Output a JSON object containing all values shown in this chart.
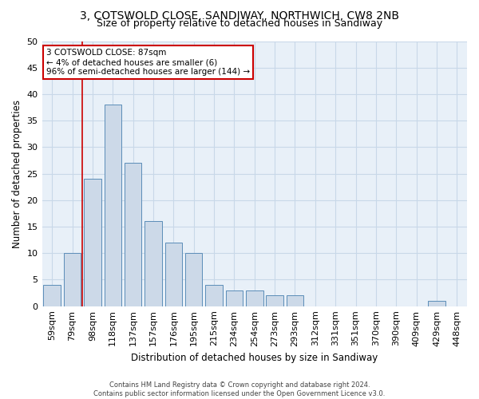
{
  "title1": "3, COTSWOLD CLOSE, SANDIWAY, NORTHWICH, CW8 2NB",
  "title2": "Size of property relative to detached houses in Sandiway",
  "xlabel": "Distribution of detached houses by size in Sandiway",
  "ylabel": "Number of detached properties",
  "categories": [
    "59sqm",
    "79sqm",
    "98sqm",
    "118sqm",
    "137sqm",
    "157sqm",
    "176sqm",
    "195sqm",
    "215sqm",
    "234sqm",
    "254sqm",
    "273sqm",
    "293sqm",
    "312sqm",
    "331sqm",
    "351sqm",
    "370sqm",
    "390sqm",
    "409sqm",
    "429sqm",
    "448sqm"
  ],
  "values": [
    4,
    10,
    24,
    38,
    27,
    16,
    12,
    10,
    4,
    3,
    3,
    2,
    2,
    0,
    0,
    0,
    0,
    0,
    0,
    1,
    0
  ],
  "bar_color": "#ccd9e8",
  "bar_edgecolor": "#5b8db8",
  "vline_color": "#cc0000",
  "annotation_text": "3 COTSWOLD CLOSE: 87sqm\n← 4% of detached houses are smaller (6)\n96% of semi-detached houses are larger (144) →",
  "annotation_box_edgecolor": "#cc0000",
  "ylim": [
    0,
    50
  ],
  "yticks": [
    0,
    5,
    10,
    15,
    20,
    25,
    30,
    35,
    40,
    45,
    50
  ],
  "grid_color": "#c8d8e8",
  "bg_color": "#e8f0f8",
  "footer1": "Contains HM Land Registry data © Crown copyright and database right 2024.",
  "footer2": "Contains public sector information licensed under the Open Government Licence v3.0.",
  "title_fontsize": 10,
  "subtitle_fontsize": 9,
  "bar_width": 0.85,
  "vline_pos": 1.5
}
